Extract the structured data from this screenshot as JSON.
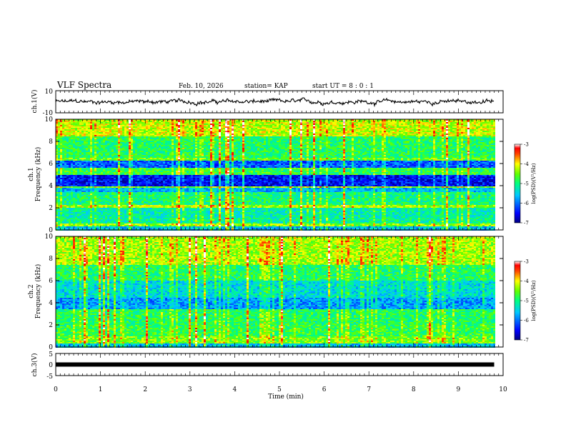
{
  "header": {
    "title": "VLF Spectra",
    "date": "Feb. 10, 2026",
    "station": "station= KAP",
    "start": "start  UT  =   8  : 0  : 1"
  },
  "chart_data": [
    {
      "type": "line",
      "name": "ch1-waveform",
      "ylabel": "ch.1(V)",
      "ylim": [
        -10,
        10
      ],
      "yticks": [
        "10",
        "-10"
      ],
      "xlim": [
        0,
        10
      ],
      "xlabel": "Time  (min)",
      "data_end_min": 9.8,
      "line_color": "#000000",
      "mean_v": 0,
      "amplitude_v": 2.5
    },
    {
      "type": "heatmap",
      "name": "ch1-spectrogram",
      "ylabel": "ch.1\nFrequency  (kHz)",
      "ylim": [
        0,
        10
      ],
      "yticks": [
        "0",
        "2",
        "4",
        "6",
        "8",
        "10"
      ],
      "xlim": [
        0,
        10
      ],
      "colorbar": {
        "label": "log(PSD)(V²/Hz)",
        "range": [
          -7,
          -3
        ],
        "ticks": [
          "-3",
          "-4",
          "-5",
          "-6",
          "-7"
        ]
      },
      "bands_khz": [
        {
          "from": 0.0,
          "to": 0.35,
          "level": -5.6
        },
        {
          "from": 0.35,
          "to": 0.7,
          "level": -4.4
        },
        {
          "from": 0.7,
          "to": 1.2,
          "level": -5.1
        },
        {
          "from": 1.2,
          "to": 2.0,
          "level": -5.2
        },
        {
          "from": 2.0,
          "to": 2.3,
          "level": -4.3
        },
        {
          "from": 2.3,
          "to": 3.4,
          "level": -5.0
        },
        {
          "from": 3.4,
          "to": 3.8,
          "level": -5.7
        },
        {
          "from": 3.8,
          "to": 4.0,
          "level": -4.4
        },
        {
          "from": 4.0,
          "to": 5.0,
          "level": -6.5
        },
        {
          "from": 5.0,
          "to": 5.6,
          "level": -4.8
        },
        {
          "from": 5.6,
          "to": 6.3,
          "level": -6.1
        },
        {
          "from": 6.3,
          "to": 6.6,
          "level": -4.6
        },
        {
          "from": 6.6,
          "to": 8.5,
          "level": -4.9
        },
        {
          "from": 8.5,
          "to": 10.0,
          "level": -4.2
        }
      ]
    },
    {
      "type": "heatmap",
      "name": "ch2-spectrogram",
      "ylabel": "ch.2\nFrequency  (kHz)",
      "ylim": [
        0,
        10
      ],
      "yticks": [
        "0",
        "2",
        "4",
        "6",
        "8",
        "10"
      ],
      "xlim": [
        0,
        10
      ],
      "colorbar": {
        "label": "log(PSD)(V²/Hz)",
        "range": [
          -7,
          -3
        ],
        "ticks": [
          "-3",
          "-4",
          "-5",
          "-6",
          "-7"
        ]
      },
      "bands_khz": [
        {
          "from": 0.0,
          "to": 0.35,
          "level": -5.6
        },
        {
          "from": 0.35,
          "to": 1.0,
          "level": -4.5
        },
        {
          "from": 1.0,
          "to": 2.0,
          "level": -4.8
        },
        {
          "from": 2.0,
          "to": 3.5,
          "level": -4.9
        },
        {
          "from": 3.5,
          "to": 4.5,
          "level": -5.8
        },
        {
          "from": 4.5,
          "to": 6.0,
          "level": -5.4
        },
        {
          "from": 6.0,
          "to": 7.5,
          "level": -4.9
        },
        {
          "from": 7.5,
          "to": 10.0,
          "level": -4.3
        }
      ]
    },
    {
      "type": "line",
      "name": "ch3-waveform",
      "ylabel": "ch.3(V)",
      "ylim": [
        -5,
        5
      ],
      "yticks": [
        "5",
        "0",
        "-5"
      ],
      "xlim": [
        0,
        10
      ],
      "xticks": [
        "0",
        "1",
        "2",
        "3",
        "4",
        "5",
        "6",
        "7",
        "8",
        "9",
        "10"
      ],
      "xlabel": "Time  (min)",
      "data_end_min": 9.8,
      "constant_v": 0,
      "line_color": "#000000"
    }
  ]
}
